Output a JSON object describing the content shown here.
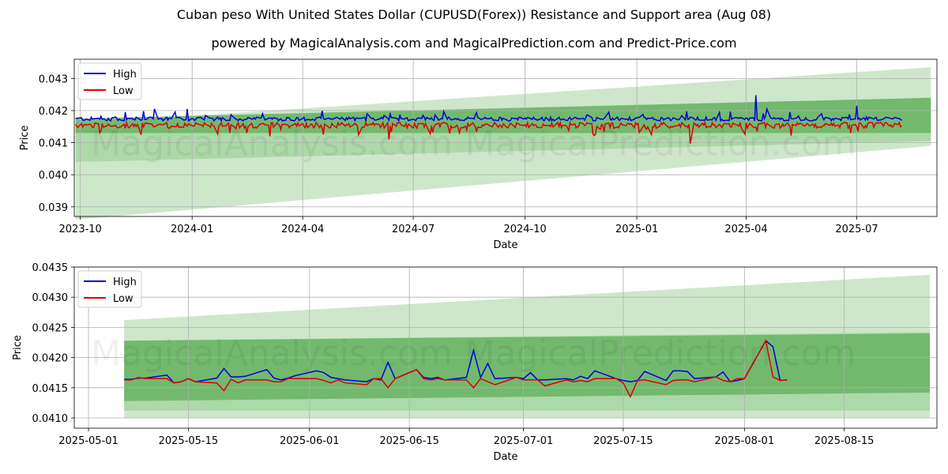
{
  "title": "Cuban peso With United States Dollar (CUPUSD(Forex)) Resistance and Support area (Aug 08)",
  "subtitle": "powered by MagicalAnalysis.com and MagicalPrediction.com and Predict-Price.com",
  "watermarks": [
    "MagicalAnalysis.com",
    "MagicalPrediction.com"
  ],
  "colors": {
    "high": "#0000dd",
    "low": "#dd0000",
    "band_light": "#c9e4c5",
    "band_mid": "#8fcd8a",
    "band_dark": "#5fae5b",
    "grid": "#b0b0b0"
  },
  "chart_data": [
    {
      "type": "line",
      "xlabel": "Date",
      "ylabel": "Price",
      "x_ticks": [
        "2023-10",
        "2024-01",
        "2024-04",
        "2024-07",
        "2024-10",
        "2025-01",
        "2025-04",
        "2025-07"
      ],
      "x_range": [
        "2023-09-26",
        "2025-09-05"
      ],
      "y_ticks": [
        "0.039",
        "0.040",
        "0.041",
        "0.042",
        "0.043"
      ],
      "ylim": [
        0.0387,
        0.0436
      ],
      "grid": true,
      "legend": {
        "placement": "top-left",
        "entries": [
          "High",
          "Low"
        ]
      },
      "data_start": "2023-09-27",
      "data_end": "2025-08-07",
      "typical_level": 0.04165,
      "high_spikes": [
        [
          "2023-11-07",
          0.04195
        ],
        [
          "2023-11-22",
          0.04198
        ],
        [
          "2023-12-01",
          0.04205
        ],
        [
          "2023-12-28",
          0.04205
        ],
        [
          "2024-02-28",
          0.0419
        ],
        [
          "2024-05-24",
          0.0419
        ],
        [
          "2024-06-07",
          0.04185
        ],
        [
          "2025-02-11",
          0.04198
        ],
        [
          "2025-03-08",
          0.0422
        ],
        [
          "2025-04-09",
          0.04248
        ],
        [
          "2025-04-18",
          0.04205
        ],
        [
          "2025-07-01",
          0.04215
        ],
        [
          "2025-08-03",
          0.04225
        ]
      ],
      "low_spikes": [
        [
          "2023-10-18",
          0.04135
        ],
        [
          "2024-03-05",
          0.0412
        ],
        [
          "2024-04-18",
          0.04125
        ],
        [
          "2024-06-11",
          0.0411
        ],
        [
          "2024-11-06",
          0.04138
        ],
        [
          "2025-01-13",
          0.04125
        ],
        [
          "2025-02-14",
          0.04097
        ],
        [
          "2025-04-10",
          0.04135
        ],
        [
          "2025-07-02",
          0.04135
        ],
        [
          "2025-08-03",
          0.04225
        ]
      ],
      "bands": [
        {
          "name": "outer",
          "start": "2023-09-27",
          "end": "2025-08-31",
          "start_range": [
            0.0386,
            0.0416
          ],
          "end_range": [
            0.0409,
            0.04335
          ]
        },
        {
          "name": "middle",
          "start": "2023-09-27",
          "end": "2025-08-31",
          "start_range": [
            0.0404,
            0.0417
          ],
          "end_range": [
            0.04105,
            0.0424
          ]
        },
        {
          "name": "inner",
          "start": "2023-09-27",
          "end": "2025-08-31",
          "start_range": [
            0.0413,
            0.04175
          ],
          "end_range": [
            0.0413,
            0.0424
          ]
        }
      ]
    },
    {
      "type": "line",
      "xlabel": "Date",
      "ylabel": "Price",
      "x_ticks": [
        "2025-05-01",
        "2025-05-15",
        "2025-06-01",
        "2025-06-15",
        "2025-07-01",
        "2025-07-15",
        "2025-08-01",
        "2025-08-15"
      ],
      "x_range": [
        "2025-04-29",
        "2025-08-28"
      ],
      "y_ticks": [
        "0.0410",
        "0.0415",
        "0.0420",
        "0.0425",
        "0.0430",
        "0.0435"
      ],
      "ylim": [
        0.04083,
        0.0435
      ],
      "grid": true,
      "legend": {
        "placement": "top-left",
        "entries": [
          "High",
          "Low"
        ]
      },
      "x": [
        "2025-05-06",
        "2025-05-07",
        "2025-05-08",
        "2025-05-09",
        "2025-05-12",
        "2025-05-13",
        "2025-05-14",
        "2025-05-15",
        "2025-05-16",
        "2025-05-19",
        "2025-05-20",
        "2025-05-21",
        "2025-05-22",
        "2025-05-23",
        "2025-05-26",
        "2025-05-27",
        "2025-05-28",
        "2025-05-29",
        "2025-05-30",
        "2025-06-02",
        "2025-06-03",
        "2025-06-04",
        "2025-06-05",
        "2025-06-06",
        "2025-06-09",
        "2025-06-10",
        "2025-06-11",
        "2025-06-12",
        "2025-06-13",
        "2025-06-16",
        "2025-06-17",
        "2025-06-18",
        "2025-06-19",
        "2025-06-20",
        "2025-06-23",
        "2025-06-24",
        "2025-06-25",
        "2025-06-26",
        "2025-06-27",
        "2025-06-30",
        "2025-07-01",
        "2025-07-02",
        "2025-07-03",
        "2025-07-04",
        "2025-07-07",
        "2025-07-08",
        "2025-07-09",
        "2025-07-10",
        "2025-07-11",
        "2025-07-14",
        "2025-07-15",
        "2025-07-16",
        "2025-07-17",
        "2025-07-18",
        "2025-07-21",
        "2025-07-22",
        "2025-07-23",
        "2025-07-24",
        "2025-07-25",
        "2025-07-28",
        "2025-07-29",
        "2025-07-30",
        "2025-07-31",
        "2025-08-01",
        "2025-08-04",
        "2025-08-05",
        "2025-08-06",
        "2025-08-07"
      ],
      "series": [
        {
          "name": "High",
          "values": [
            0.04164,
            0.04164,
            0.04166,
            0.04166,
            0.04171,
            0.04158,
            0.0416,
            0.04165,
            0.0416,
            0.04166,
            0.04182,
            0.04168,
            0.04168,
            0.04169,
            0.0418,
            0.04166,
            0.04163,
            0.04166,
            0.0417,
            0.04178,
            0.04175,
            0.04167,
            0.04165,
            0.04163,
            0.0416,
            0.04165,
            0.04163,
            0.04192,
            0.04165,
            0.0418,
            0.04167,
            0.04165,
            0.04167,
            0.04163,
            0.04167,
            0.04212,
            0.04167,
            0.0419,
            0.04165,
            0.04167,
            0.04165,
            0.04175,
            0.04163,
            0.04163,
            0.04165,
            0.04163,
            0.04169,
            0.04165,
            0.04178,
            0.04165,
            0.04162,
            0.0416,
            0.04162,
            0.04177,
            0.04162,
            0.04178,
            0.04178,
            0.04177,
            0.04165,
            0.04168,
            0.04176,
            0.0416,
            0.04162,
            0.04165,
            0.04228,
            0.04218,
            0.04162,
            0.04163
          ]
        },
        {
          "name": "Low",
          "values": [
            0.04163,
            0.04163,
            0.04167,
            0.04165,
            0.04165,
            0.04158,
            0.0416,
            0.04165,
            0.0416,
            0.04158,
            0.04145,
            0.04164,
            0.04158,
            0.04163,
            0.04163,
            0.0416,
            0.0416,
            0.04165,
            0.04165,
            0.04165,
            0.04162,
            0.04158,
            0.04163,
            0.04158,
            0.04155,
            0.04165,
            0.04165,
            0.0415,
            0.04165,
            0.0418,
            0.04165,
            0.04163,
            0.04165,
            0.04163,
            0.04163,
            0.0415,
            0.04165,
            0.0416,
            0.04155,
            0.04167,
            0.04163,
            0.04163,
            0.04163,
            0.04153,
            0.04163,
            0.0416,
            0.04162,
            0.0416,
            0.04165,
            0.04165,
            0.04158,
            0.04135,
            0.04162,
            0.04163,
            0.04155,
            0.04162,
            0.04163,
            0.04163,
            0.0416,
            0.04168,
            0.04162,
            0.0416,
            0.04165,
            0.04165,
            0.04228,
            0.04168,
            0.04162,
            0.04163
          ]
        }
      ],
      "bands": [
        {
          "name": "outer",
          "start": "2025-05-06",
          "end": "2025-08-27",
          "start_range": [
            0.041,
            0.04262
          ],
          "end_range": [
            0.041,
            0.04337
          ]
        },
        {
          "name": "middle",
          "start": "2025-05-06",
          "end": "2025-08-27",
          "start_range": [
            0.04112,
            0.04228
          ],
          "end_range": [
            0.04112,
            0.04242
          ]
        },
        {
          "name": "inner",
          "start": "2025-05-06",
          "end": "2025-08-27",
          "start_range": [
            0.04128,
            0.04228
          ],
          "end_range": [
            0.04142,
            0.0424
          ]
        }
      ]
    }
  ]
}
